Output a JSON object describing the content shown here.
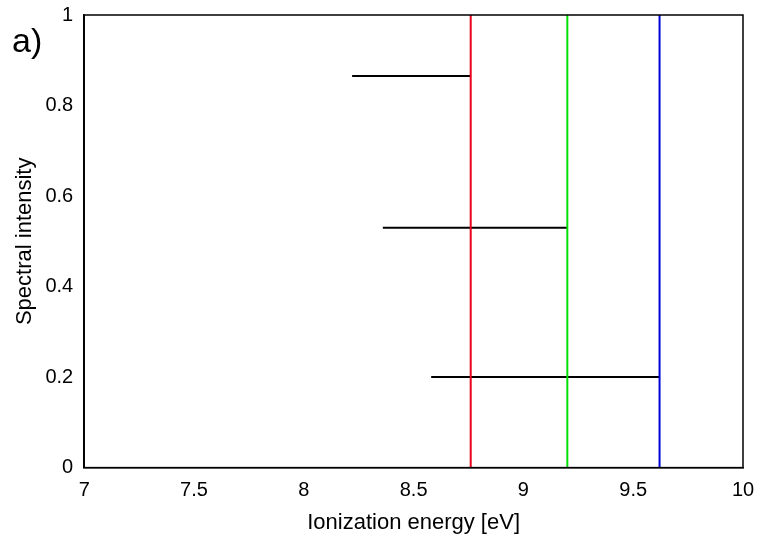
{
  "chart_data": {
    "type": "scatter",
    "panel_label": "a)",
    "x_label": "Ionization energy [eV]",
    "y_label": "Spectral intensity",
    "xlim": [
      7,
      10
    ],
    "xticks": [
      7,
      7.5,
      8,
      8.5,
      9,
      9.5,
      10
    ],
    "ylim": [
      0,
      1
    ],
    "yticks": [
      0,
      0.2,
      0.4,
      0.6,
      0.8,
      1
    ],
    "grid": false,
    "series": [
      {
        "color": "#e8001c",
        "x": [
          8.76,
          8.76
        ],
        "values": [
          0,
          1
        ],
        "line_style": "solid"
      },
      {
        "color": "#00e000",
        "x": [
          9.2,
          9.2
        ],
        "values": [
          0,
          1
        ],
        "line_style": "solid"
      },
      {
        "color": "#0000d8",
        "x": [
          9.62,
          9.62
        ],
        "values": [
          0,
          1
        ],
        "line_style": "solid"
      },
      {
        "color": "#000000",
        "x": [
          8.22,
          8.76
        ],
        "values": [
          0.865,
          0.865
        ],
        "line_style": "solid"
      },
      {
        "color": "#000000",
        "x": [
          8.36,
          9.2
        ],
        "values": [
          0.53,
          0.53
        ],
        "line_style": "solid"
      },
      {
        "color": "#000000",
        "x": [
          8.58,
          9.62
        ],
        "values": [
          0.2,
          0.2
        ],
        "line_style": "solid"
      }
    ]
  }
}
